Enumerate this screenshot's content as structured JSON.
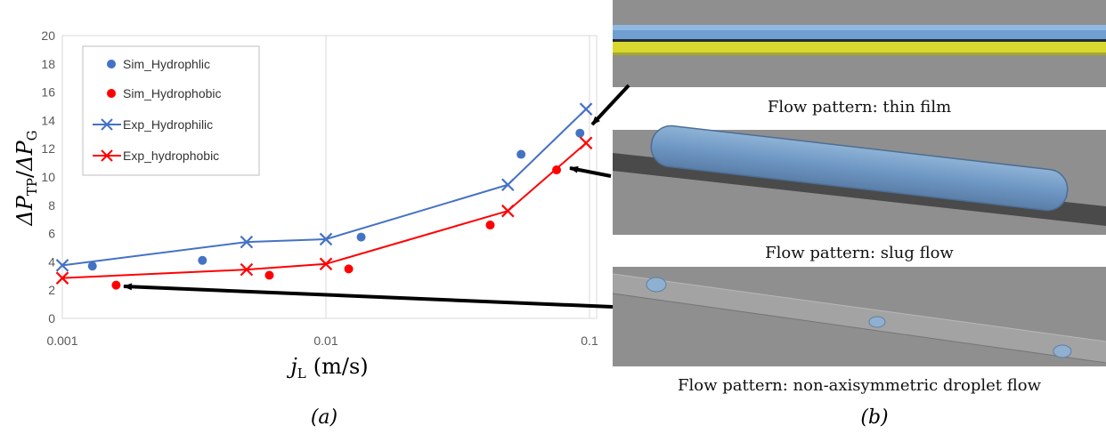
{
  "chart_data": {
    "type": "scatter",
    "xscale": "log",
    "xlim": [
      0.001,
      0.1
    ],
    "ylim": [
      0,
      20
    ],
    "xticks": [
      0.001,
      0.01,
      0.1
    ],
    "xtick_labels": [
      "0.001",
      "0.01",
      "0.1"
    ],
    "yticks": [
      0,
      2,
      4,
      6,
      8,
      10,
      12,
      14,
      16,
      18,
      20
    ],
    "ytick_labels": [
      "0",
      "2",
      "4",
      "6",
      "8",
      "10",
      "12",
      "14",
      "16",
      "18",
      "20"
    ],
    "xlabel_main": "j",
    "xlabel_sub": "L",
    "xlabel_unit": "(m/s)",
    "ylabel_prefix": "ΔP",
    "ylabel_num_sub": "TP",
    "ylabel_sep": "/",
    "ylabel_den_sub": "G",
    "grid": "vertical",
    "legend_position": "top-left",
    "series": [
      {
        "name": "Sim_Hydrophlic",
        "marker": "circle",
        "color": "#4472C4",
        "x": [
          0.0013,
          0.0034,
          0.0136,
          0.055,
          0.092
        ],
        "y": [
          3.7,
          4.1,
          5.75,
          11.6,
          13.1
        ]
      },
      {
        "name": "Sim_Hydrophobic",
        "marker": "circle",
        "color": "#FF0000",
        "x": [
          0.0016,
          0.0061,
          0.0122,
          0.042,
          0.075
        ],
        "y": [
          2.35,
          3.05,
          3.5,
          6.6,
          10.5
        ]
      },
      {
        "name": "Exp_Hydrophilic",
        "marker": "x-line",
        "color": "#4472C4",
        "x": [
          0.001,
          0.005,
          0.01,
          0.049,
          0.097
        ],
        "y": [
          3.75,
          5.4,
          5.6,
          9.45,
          14.8
        ]
      },
      {
        "name": "Exp_hydrophobic",
        "marker": "x-line",
        "color": "#FF0000",
        "x": [
          0.001,
          0.005,
          0.01,
          0.049,
          0.097
        ],
        "y": [
          2.85,
          3.45,
          3.85,
          7.6,
          12.4
        ]
      }
    ]
  },
  "panel_a_label": "(a)",
  "panel_b_label": "(b)",
  "captions": {
    "thin_film": "Flow pattern: thin film",
    "slug": "Flow pattern: slug flow",
    "droplet": "Flow pattern: non-axisymmetric droplet flow"
  },
  "colors": {
    "blue": "#4472C4",
    "red": "#FF0000",
    "image_gray": "#8f8f8f",
    "film_yellow": "#d8d830"
  }
}
